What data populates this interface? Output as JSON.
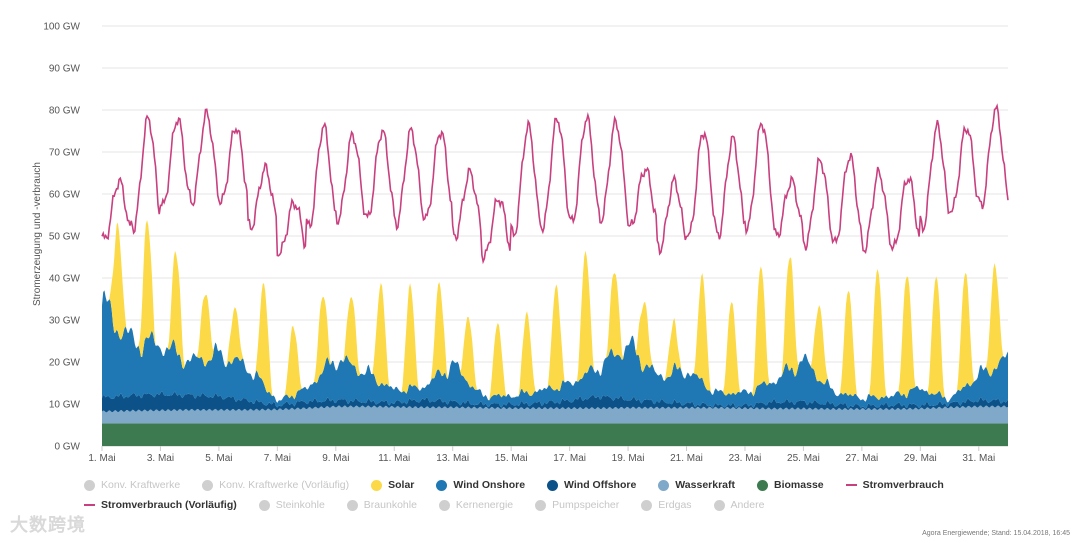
{
  "chart_data": {
    "type": "area",
    "title": "",
    "ylabel": "Stromerzeugung und -verbrauch",
    "ylim": [
      0,
      100
    ],
    "y_ticks": [
      "0 GW",
      "10 GW",
      "20 GW",
      "30 GW",
      "40 GW",
      "50 GW",
      "60 GW",
      "70 GW",
      "80 GW",
      "90 GW",
      "100 GW"
    ],
    "x_range_days": [
      1,
      32
    ],
    "x_ticks": [
      {
        "day": 1,
        "label": "1. Mai"
      },
      {
        "day": 3,
        "label": "3. Mai"
      },
      {
        "day": 5,
        "label": "5. Mai"
      },
      {
        "day": 7,
        "label": "7. Mai"
      },
      {
        "day": 9,
        "label": "9. Mai"
      },
      {
        "day": 11,
        "label": "11. Mai"
      },
      {
        "day": 13,
        "label": "13. Mai"
      },
      {
        "day": 15,
        "label": "15. Mai"
      },
      {
        "day": 17,
        "label": "17. Mai"
      },
      {
        "day": 19,
        "label": "19. Mai"
      },
      {
        "day": 21,
        "label": "21. Mai"
      },
      {
        "day": 23,
        "label": "23. Mai"
      },
      {
        "day": 25,
        "label": "25. Mai"
      },
      {
        "day": 27,
        "label": "27. Mai"
      },
      {
        "day": 29,
        "label": "29. Mai"
      },
      {
        "day": 31,
        "label": "31. Mai"
      }
    ],
    "series": [
      {
        "name": "Biomasse",
        "kind": "area",
        "color": "#3d7a4f",
        "constant_gw": 5.4
      },
      {
        "name": "Wasserkraft",
        "kind": "area",
        "color": "#7fa8c9",
        "daily_gw": [
          2.8,
          3.0,
          3.1,
          3.2,
          3.2,
          3.2,
          3.3,
          3.6,
          4.0,
          4.0,
          3.9,
          3.8,
          3.8,
          3.7,
          3.6,
          3.6,
          3.6,
          3.6,
          3.7,
          3.7,
          3.7,
          3.7,
          3.6,
          3.5,
          3.5,
          3.4,
          3.4,
          3.4,
          3.5,
          3.8,
          4.0,
          4.0
        ]
      },
      {
        "name": "Wind Offshore",
        "kind": "area",
        "color": "#0c5288",
        "daily_gw": [
          3.3,
          3.6,
          3.8,
          3.5,
          3.2,
          2.2,
          1.0,
          1.6,
          1.5,
          1.2,
          1.0,
          1.8,
          1.3,
          0.8,
          0.9,
          1.2,
          1.8,
          2.8,
          2.0,
          1.5,
          1.0,
          0.5,
          0.6,
          1.6,
          1.6,
          1.2,
          0.6,
          1.0,
          0.8,
          0.9,
          1.5,
          1.3
        ]
      },
      {
        "name": "Wind Onshore",
        "kind": "area",
        "color": "#1f78b4",
        "daily_gw": [
          22,
          13,
          12,
          8,
          10,
          8,
          1,
          3,
          10,
          7,
          3,
          3,
          9,
          2,
          2,
          3,
          4,
          7,
          13,
          6,
          8,
          3,
          3,
          5,
          10,
          3,
          2,
          2,
          4,
          1,
          6,
          10
        ]
      },
      {
        "name": "Solar",
        "kind": "area",
        "color": "#fcd947",
        "daily_peak_gw": [
          26,
          28,
          23,
          17,
          12,
          24,
          17,
          18,
          16,
          24,
          24,
          21,
          16,
          17,
          19,
          25,
          29,
          20,
          16,
          11,
          25,
          22,
          28,
          27,
          18,
          25,
          31,
          29,
          28,
          27,
          25,
          27
        ]
      },
      {
        "name": "Stromverbrauch",
        "kind": "line",
        "color": "#c8407f",
        "daily_peak_gw": [
          63,
          78,
          78,
          79,
          76,
          66,
          58,
          76,
          74,
          75,
          75,
          75,
          65,
          59,
          76,
          78,
          78,
          77,
          66,
          63,
          75,
          73,
          77,
          63,
          68,
          69,
          65,
          64,
          76,
          76,
          80,
          76
        ],
        "daily_min_gw": [
          49,
          52,
          57,
          58,
          58,
          52,
          46,
          52,
          54,
          54,
          53,
          54,
          50,
          45,
          50,
          52,
          53,
          54,
          52,
          47,
          50,
          50,
          52,
          50,
          48,
          48,
          47,
          47,
          52,
          56,
          57,
          57
        ]
      }
    ]
  },
  "legend": {
    "konv": "Konv. Kraftwerke",
    "konv_vorl": "Konv. Kraftwerke (Vorläufig)",
    "solar": "Solar",
    "wind_on": "Wind Onshore",
    "wind_off": "Wind Offshore",
    "wasser": "Wasserkraft",
    "bio": "Biomasse",
    "verbrauch": "Stromverbrauch",
    "verbrauch_vorl": "Stromverbrauch (Vorläufig)",
    "steinkohle": "Steinkohle",
    "braunkohle": "Braunkohle",
    "kern": "Kernenergie",
    "pump": "Pumpspeicher",
    "erdgas": "Erdgas",
    "andere": "Andere"
  },
  "colors": {
    "inactive": "#cfcfcf",
    "solar": "#fcd947",
    "wind_on": "#1f78b4",
    "wind_off": "#0c5288",
    "wasser": "#7fa8c9",
    "bio": "#3d7a4f",
    "verbrauch": "#c8407f"
  },
  "credit": "Agora Energiewende; Stand: 15.04.2018, 16:45",
  "watermark": "大数跨境"
}
